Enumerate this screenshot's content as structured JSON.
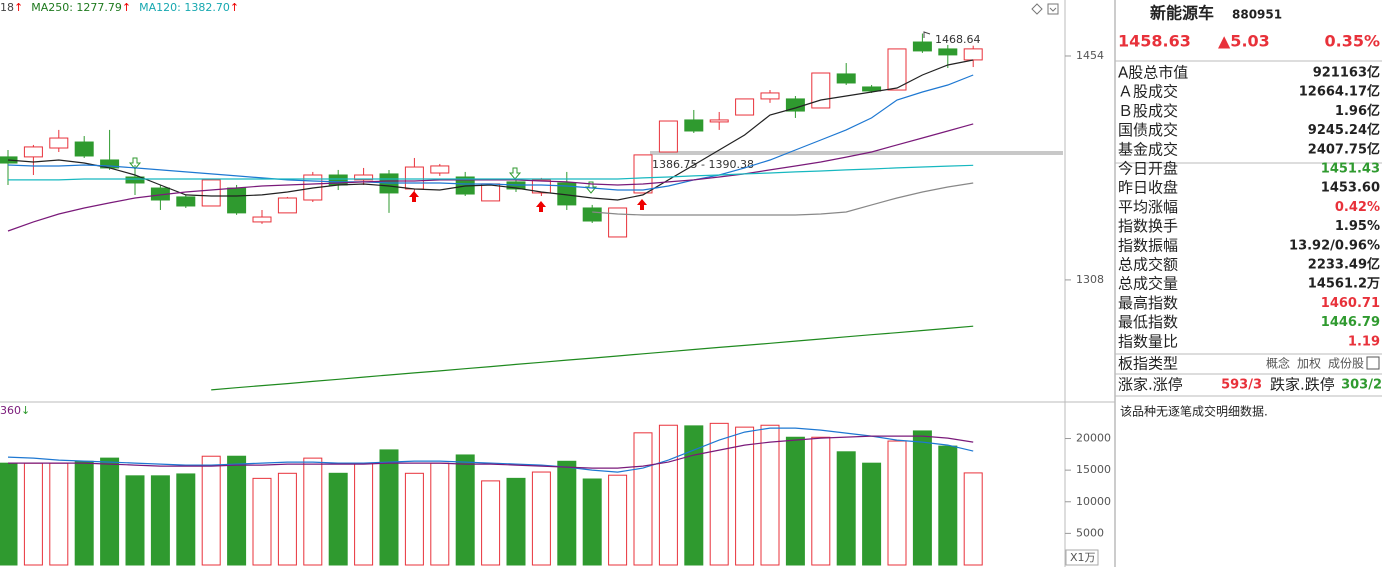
{
  "chart_data": [
    {
      "type": "candlestick",
      "legend": [
        {
          "text": "18",
          "arrow": "↑",
          "color": "#444444"
        },
        {
          "text": "MA250: 1277.79",
          "arrow": "↑",
          "color": "#1f7a1f"
        },
        {
          "text": "MA120: 1382.70",
          "arrow": "↑",
          "color": "#17a8b0"
        }
      ],
      "annotations": [
        "1468.64",
        "1386.75 - 1390.38"
      ],
      "ylim": [
        1229.7,
        1490.5
      ],
      "yticks": [
        1308,
        1454
      ],
      "up_color": "#e8313a",
      "down_color": "#2f9a2f",
      "open": [
        1388.2,
        1388.2,
        1394.0,
        1397.9,
        1386.2,
        1375.1,
        1367.9,
        1362.1,
        1356.2,
        1367.9,
        1345.8,
        1351.7,
        1360.1,
        1376.4,
        1373.2,
        1377.1,
        1367.3,
        1377.7,
        1375.1,
        1359.5,
        1371.9,
        1364.7,
        1371.2,
        1354.9,
        1336.0,
        1364.7,
        1391.4,
        1412.3,
        1411.0,
        1415.5,
        1426.0,
        1426.0,
        1420.1,
        1442.3,
        1433.8,
        1431.8,
        1463.1,
        1458.6,
        1451.43
      ],
      "high": [
        1392.7,
        1396.0,
        1405.8,
        1401.8,
        1405.8,
        1382.9,
        1369.9,
        1363.4,
        1373.2,
        1369.9,
        1353.6,
        1362.1,
        1378.4,
        1379.7,
        1381.0,
        1379.7,
        1387.5,
        1383.6,
        1378.4,
        1370.6,
        1373.2,
        1374.5,
        1378.4,
        1356.9,
        1354.9,
        1389.5,
        1411.6,
        1418.8,
        1417.5,
        1426.0,
        1431.8,
        1427.9,
        1442.9,
        1449.4,
        1435.1,
        1458.6,
        1468.64,
        1461.2,
        1460.71
      ],
      "low": [
        1369.9,
        1376.4,
        1391.4,
        1387.5,
        1379.7,
        1363.4,
        1353.6,
        1354.9,
        1356.2,
        1350.4,
        1344.5,
        1351.7,
        1358.8,
        1366.6,
        1369.9,
        1351.7,
        1365.3,
        1375.8,
        1362.7,
        1359.5,
        1365.3,
        1362.7,
        1353.6,
        1345.1,
        1336.0,
        1364.7,
        1391.4,
        1403.8,
        1405.8,
        1415.5,
        1423.4,
        1413.6,
        1420.1,
        1435.1,
        1429.9,
        1431.8,
        1456.0,
        1446.2,
        1446.79
      ],
      "close": [
        1384.2,
        1394.7,
        1400.5,
        1388.8,
        1381.0,
        1371.2,
        1360.1,
        1356.2,
        1373.2,
        1351.7,
        1349.0,
        1361.4,
        1376.4,
        1369.9,
        1376.4,
        1364.7,
        1381.6,
        1382.3,
        1364.0,
        1370.6,
        1367.3,
        1373.2,
        1356.9,
        1346.4,
        1354.9,
        1389.5,
        1411.6,
        1405.1,
        1412.3,
        1426.0,
        1429.9,
        1418.1,
        1442.9,
        1436.4,
        1431.2,
        1458.6,
        1457.3,
        1454.7,
        1458.63
      ],
      "series": [
        {
          "color": "#222222",
          "values": [
            1386.2,
            1384.9,
            1386.2,
            1384.2,
            1381.0,
            1376.4,
            1369.9,
            1363.4,
            1362.7,
            1362.7,
            1363.4,
            1365.3,
            1367.9,
            1369.9,
            1370.5,
            1369.2,
            1367.3,
            1366.6,
            1369.2,
            1369.9,
            1367.9,
            1365.3,
            1363.4,
            1361.4,
            1360.1,
            1363.4,
            1373.2,
            1382.9,
            1392.7,
            1402.5,
            1415.5,
            1420.1,
            1425.3,
            1427.9,
            1430.5,
            1433.1,
            1441.6,
            1448.1,
            1451.4
          ]
        },
        {
          "color": "#1e78d2",
          "values": [
            1382.9,
            1382.3,
            1382.3,
            1382.9,
            1382.3,
            1381.0,
            1379.7,
            1378.4,
            1377.1,
            1375.8,
            1374.5,
            1373.2,
            1372.5,
            1371.9,
            1371.9,
            1371.2,
            1371.2,
            1371.2,
            1370.5,
            1370.5,
            1369.9,
            1369.9,
            1369.2,
            1367.9,
            1366.6,
            1366.6,
            1369.2,
            1373.2,
            1376.4,
            1381.0,
            1386.2,
            1392.7,
            1399.2,
            1405.8,
            1413.6,
            1425.3,
            1430.5,
            1435.1,
            1441.6
          ]
        },
        {
          "color": "#7a1a7a",
          "values": [
            1339.9,
            1345.8,
            1351.0,
            1354.9,
            1358.2,
            1361.4,
            1363.4,
            1365.3,
            1366.6,
            1367.9,
            1369.2,
            1369.9,
            1370.5,
            1371.2,
            1371.9,
            1372.5,
            1372.5,
            1373.2,
            1373.2,
            1373.2,
            1373.2,
            1372.5,
            1371.9,
            1370.5,
            1369.9,
            1370.5,
            1371.9,
            1373.2,
            1375.1,
            1377.1,
            1379.7,
            1382.3,
            1384.9,
            1388.1,
            1391.4,
            1396.0,
            1400.5,
            1405.1,
            1409.7
          ]
        },
        {
          "color": "#888888",
          "values": [
            null,
            null,
            null,
            null,
            null,
            null,
            null,
            null,
            null,
            null,
            null,
            null,
            null,
            null,
            null,
            null,
            null,
            null,
            null,
            null,
            null,
            null,
            null,
            1352.3,
            1351.0,
            1350.3,
            1350.3,
            1350.3,
            1350.3,
            1350.3,
            1350.3,
            1350.3,
            1351.0,
            1352.3,
            1356.9,
            1361.4,
            1365.3,
            1368.6,
            1371.2
          ]
        },
        {
          "color": "#17b8c0",
          "values": [
            1373.2,
            1373.2,
            1373.2,
            1373.8,
            1373.8,
            1373.8,
            1373.8,
            1373.8,
            1373.8,
            1373.8,
            1373.8,
            1373.8,
            1373.8,
            1373.8,
            1373.8,
            1373.8,
            1373.8,
            1373.8,
            1373.8,
            1373.8,
            1373.8,
            1373.8,
            1373.8,
            1373.8,
            1373.8,
            1374.5,
            1375.1,
            1375.8,
            1376.4,
            1377.1,
            1377.7,
            1378.4,
            1379.0,
            1379.7,
            1380.3,
            1381.0,
            1381.6,
            1382.2,
            1382.7
          ]
        },
        {
          "color": "#1f8a1f",
          "values": [
            null,
            null,
            null,
            null,
            null,
            null,
            null,
            null,
            1236.3,
            1237.7,
            1239.1,
            1240.4,
            1241.8,
            1243.2,
            1244.6,
            1246.0,
            1247.4,
            1248.7,
            1250.1,
            1251.5,
            1252.9,
            1254.3,
            1255.7,
            1257.0,
            1258.4,
            1259.8,
            1261.2,
            1262.6,
            1264.0,
            1265.3,
            1266.7,
            1268.1,
            1269.5,
            1270.9,
            1272.3,
            1273.6,
            1275.0,
            1276.4,
            1277.79
          ]
        }
      ]
    },
    {
      "type": "bar",
      "legend": [
        {
          "text": "360",
          "arrow": "↓",
          "color": "#7a1a7a"
        }
      ],
      "unit": "X1万",
      "ylim": [
        0,
        25300
      ],
      "yticks": [
        20000,
        15000,
        10000,
        5000
      ],
      "values": [
        16100,
        16100,
        16100,
        16400,
        16900,
        14100,
        14100,
        14400,
        17200,
        17200,
        13700,
        14500,
        16900,
        14500,
        16100,
        18200,
        14500,
        16100,
        17400,
        13300,
        13700,
        14700,
        16400,
        13600,
        14200,
        20900,
        22100,
        22000,
        22400,
        21800,
        22100,
        20200,
        20200,
        17900,
        16100,
        19600,
        21200,
        18800,
        14561.2
      ],
      "series": [
        {
          "color": "#1e78d2",
          "values": [
            17064,
            16906,
            16590,
            16432,
            16274,
            16116,
            15958,
            15800,
            15800,
            15958,
            16116,
            16274,
            16274,
            16116,
            16116,
            16274,
            16432,
            16432,
            16274,
            16116,
            15958,
            15800,
            15484,
            15010,
            14694,
            15326,
            16590,
            18170,
            19750,
            21014,
            21646,
            21646,
            21330,
            20856,
            20382,
            19750,
            19434,
            18960,
            18012
          ]
        },
        {
          "color": "#7a1a7a",
          "values": [
            16116,
            16116,
            16116,
            16116,
            15958,
            15800,
            15642,
            15642,
            15642,
            15800,
            15800,
            15958,
            15958,
            15958,
            15958,
            16116,
            16116,
            16116,
            15958,
            15958,
            15800,
            15642,
            15484,
            15326,
            15326,
            15642,
            16274,
            17380,
            18170,
            18960,
            19434,
            19750,
            20066,
            20224,
            20382,
            20382,
            20382,
            20066,
            19434
          ]
        }
      ]
    }
  ],
  "panel": {
    "name": "新能源车",
    "code": "880951",
    "price": "1458.63",
    "change": "▲5.03",
    "change_pct": "0.35%",
    "color": "#e8313a",
    "rows": [
      {
        "label": "A股总市值",
        "value": "921163亿"
      },
      {
        "label": "Ａ股成交",
        "value": "12664.17亿"
      },
      {
        "label": "Ｂ股成交",
        "value": "1.96亿"
      },
      {
        "label": "国债成交",
        "value": "9245.24亿"
      },
      {
        "label": "基金成交",
        "value": "2407.75亿"
      },
      {
        "label": "今日开盘",
        "value": "1451.43",
        "color": "#2f9a2f"
      },
      {
        "label": "昨日收盘",
        "value": "1453.60"
      },
      {
        "label": "平均涨幅",
        "value": "0.42%",
        "color": "#e8313a"
      },
      {
        "label": "指数换手",
        "value": "1.95%"
      },
      {
        "label": "指数振幅",
        "value": "13.92/0.96%"
      },
      {
        "label": "总成交额",
        "value": "2233.49亿"
      },
      {
        "label": "总成交量",
        "value": "14561.2万"
      },
      {
        "label": "最高指数",
        "value": "1460.71",
        "color": "#e8313a"
      },
      {
        "label": "最低指数",
        "value": "1446.79",
        "color": "#2f9a2f"
      },
      {
        "label": "指数量比",
        "value": "1.19",
        "color": "#e8313a"
      }
    ],
    "type_row": {
      "label": "板指类型",
      "options": [
        "概念",
        "加权",
        "成份股"
      ]
    },
    "breadth": {
      "up_label": "涨家.涨停",
      "up_value": "593/3",
      "down_label": "跌家.跌停",
      "down_value": "303/2"
    },
    "note": "该品种无逐笔成交明细数据."
  }
}
